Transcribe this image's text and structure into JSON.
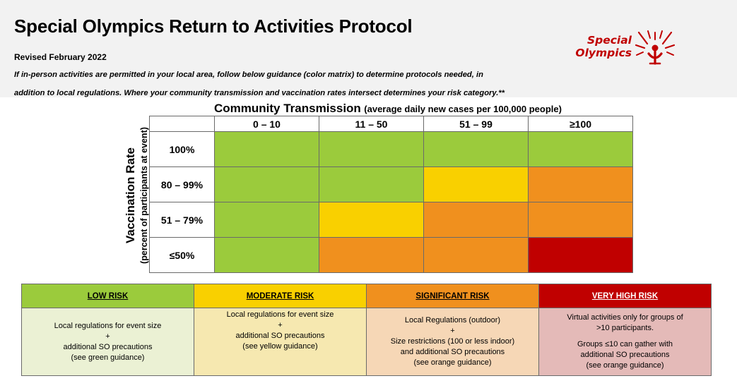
{
  "header": {
    "title": "Special Olympics Return to Activities Protocol",
    "revised": "Revised February 2022",
    "intro": "If in-person activities are permitted in your local area, follow below guidance (color matrix) to determine protocols needed, in addition to local regulations. Where your community transmission and vaccination rates intersect determines your risk category.**",
    "logo": {
      "line1": "Special",
      "line2": "Olympics",
      "icon": "special-olympics-figure-icon",
      "color": "#c00000"
    }
  },
  "matrix": {
    "column_title": "Community Transmission",
    "column_subtitle": "(average daily new cases per 100,000 people)",
    "row_title": "Vaccination Rate",
    "row_subtitle": "(percent of participants at event)",
    "columns": [
      "0 – 10",
      "11 – 50",
      "51 – 99",
      "≥100"
    ],
    "rows": [
      {
        "label": "100%",
        "risk": [
          "low",
          "low",
          "low",
          "low"
        ]
      },
      {
        "label": "80 – 99%",
        "risk": [
          "low",
          "low",
          "moderate",
          "significant"
        ]
      },
      {
        "label": "51 – 79%",
        "risk": [
          "low",
          "moderate",
          "significant",
          "significant"
        ]
      },
      {
        "label": "≤50%",
        "risk": [
          "low",
          "significant",
          "significant",
          "very_high"
        ]
      }
    ],
    "colors": {
      "low": "#9bcb3c",
      "moderate": "#f9d000",
      "significant": "#f0901e",
      "very_high": "#c00000"
    }
  },
  "legend": {
    "items": [
      {
        "key": "low",
        "heading": "LOW RISK",
        "header_color": "#9bcb3c",
        "body_color": "#ebf1d4",
        "text_color": "#000000",
        "lines": [
          "Local regulations for event size",
          "+",
          "additional SO precautions",
          "(see green guidance)"
        ]
      },
      {
        "key": "moderate",
        "heading": "MODERATE RISK",
        "header_color": "#f9d000",
        "body_color": "#f6e8b0",
        "text_color": "#000000",
        "lines": [
          "Local regulations for event size",
          "+",
          "additional SO precautions",
          "(see yellow guidance)"
        ]
      },
      {
        "key": "significant",
        "heading": "SIGNIFICANT RISK",
        "header_color": "#f0901e",
        "body_color": "#f6d7b6",
        "text_color": "#000000",
        "lines": [
          "Local Regulations (outdoor)",
          "+",
          "Size restrictions (100 or less indoor)",
          "and additional SO precautions",
          "(see orange guidance)"
        ]
      },
      {
        "key": "very_high",
        "heading": "VERY HIGH RISK",
        "header_color": "#c00000",
        "body_color": "#e4bab8",
        "text_color": "#ffffff",
        "lines": [
          "Virtual activities only for groups of",
          ">10 participants.",
          "",
          "Groups ≤10 can gather with",
          "additional SO precautions",
          "(see orange guidance)"
        ]
      }
    ]
  }
}
